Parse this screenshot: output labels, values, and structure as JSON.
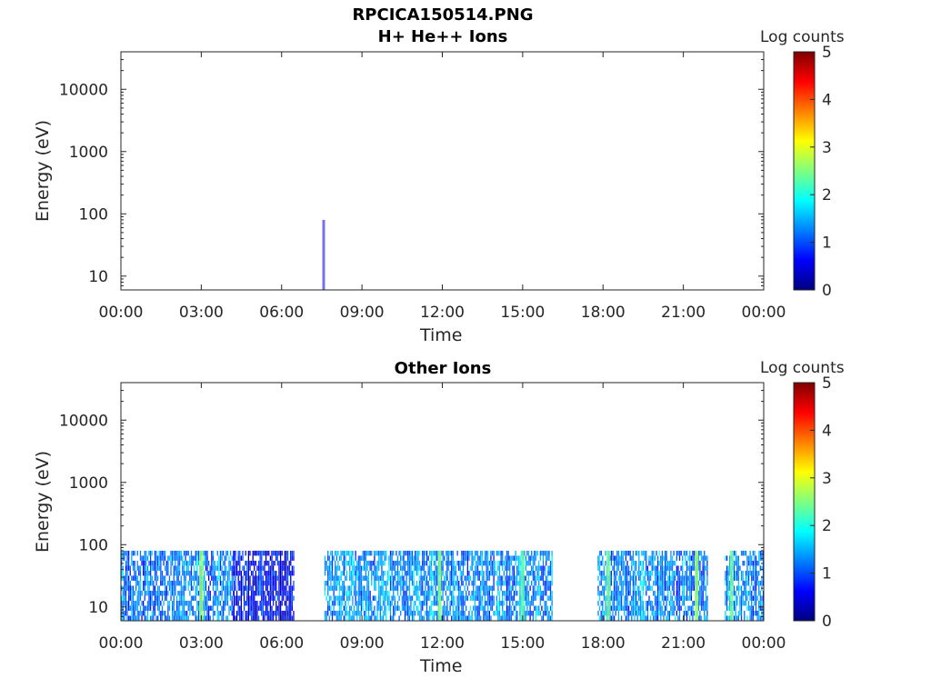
{
  "figure_title": "RPCICA150514.PNG",
  "chart_data": [
    {
      "type": "heatmap",
      "title": "H+ He++ Ions",
      "xlabel": "Time",
      "ylabel": "Energy (eV)",
      "colorbar_label": "Log counts",
      "colorbar_ticks": [
        "0",
        "1",
        "2",
        "3",
        "4",
        "5"
      ],
      "clim": [
        0,
        5
      ],
      "x_tick_labels": [
        "00:00",
        "03:00",
        "06:00",
        "09:00",
        "12:00",
        "15:00",
        "18:00",
        "21:00",
        "00:00"
      ],
      "xlim_hours": [
        0,
        24
      ],
      "y_tick_labels": [
        "10",
        "100",
        "1000",
        "10000"
      ],
      "yscale": "log",
      "ylim": [
        6,
        40000
      ],
      "colormap": "jet",
      "signal": [
        {
          "t_start": 7.52,
          "t_end": 7.62,
          "e_min": 6,
          "e_max": 80,
          "level": 0.4
        }
      ]
    },
    {
      "type": "heatmap",
      "title": "Other Ions",
      "xlabel": "Time",
      "ylabel": "Energy (eV)",
      "colorbar_label": "Log counts",
      "colorbar_ticks": [
        "0",
        "1",
        "2",
        "3",
        "4",
        "5"
      ],
      "clim": [
        0,
        5
      ],
      "x_tick_labels": [
        "00:00",
        "03:00",
        "06:00",
        "09:00",
        "12:00",
        "15:00",
        "18:00",
        "21:00",
        "00:00"
      ],
      "xlim_hours": [
        0,
        24
      ],
      "y_tick_labels": [
        "10",
        "100",
        "1000",
        "10000"
      ],
      "yscale": "log",
      "ylim": [
        6,
        40000
      ],
      "colormap": "jet",
      "energy_band": [
        6,
        80
      ],
      "segments": [
        {
          "t_start": 0.0,
          "t_end": 4.2,
          "base_level": 1.2
        },
        {
          "t_start": 4.2,
          "t_end": 6.45,
          "base_level": 0.6
        },
        {
          "t_start": 7.6,
          "t_end": 16.1,
          "base_level": 1.3
        },
        {
          "t_start": 17.8,
          "t_end": 20.3,
          "base_level": 1.3
        },
        {
          "t_start": 20.35,
          "t_end": 21.9,
          "base_level": 1.2
        },
        {
          "t_start": 22.55,
          "t_end": 24.0,
          "base_level": 1.2
        }
      ],
      "bright_stripes": [
        {
          "t": 3.0,
          "level": 2.6
        },
        {
          "t": 11.9,
          "level": 2.5
        },
        {
          "t": 15.0,
          "level": 2.3
        },
        {
          "t": 18.2,
          "level": 2.4
        },
        {
          "t": 21.5,
          "level": 2.6
        },
        {
          "t": 22.8,
          "level": 2.4
        }
      ]
    }
  ]
}
